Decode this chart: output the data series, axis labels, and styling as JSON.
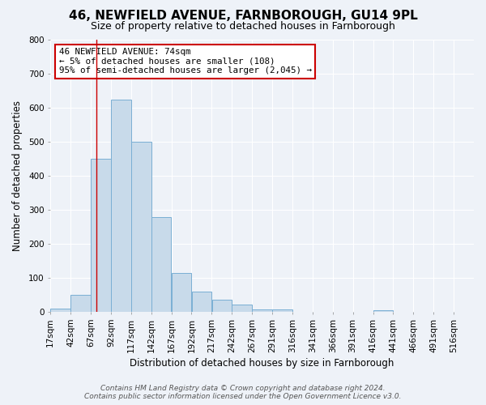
{
  "title": "46, NEWFIELD AVENUE, FARNBOROUGH, GU14 9PL",
  "subtitle": "Size of property relative to detached houses in Farnborough",
  "xlabel": "Distribution of detached houses by size in Farnborough",
  "ylabel": "Number of detached properties",
  "bin_labels": [
    "17sqm",
    "42sqm",
    "67sqm",
    "92sqm",
    "117sqm",
    "142sqm",
    "167sqm",
    "192sqm",
    "217sqm",
    "242sqm",
    "267sqm",
    "291sqm",
    "316sqm",
    "341sqm",
    "366sqm",
    "391sqm",
    "416sqm",
    "441sqm",
    "466sqm",
    "491sqm",
    "516sqm"
  ],
  "bar_values": [
    10,
    50,
    450,
    625,
    500,
    280,
    115,
    60,
    37,
    22,
    9,
    7,
    0,
    0,
    0,
    0,
    5,
    0,
    0,
    0,
    0
  ],
  "bar_color": "#c8daea",
  "bar_edge_color": "#7aafd4",
  "vline_color": "#cc0000",
  "annotation_text": "46 NEWFIELD AVENUE: 74sqm\n← 5% of detached houses are smaller (108)\n95% of semi-detached houses are larger (2,045) →",
  "annotation_box_color": "#ffffff",
  "annotation_box_edge_color": "#cc0000",
  "footer_line1": "Contains HM Land Registry data © Crown copyright and database right 2024.",
  "footer_line2": "Contains public sector information licensed under the Open Government Licence v3.0.",
  "background_color": "#eef2f8",
  "grid_color": "#ffffff",
  "ylim": [
    0,
    800
  ],
  "yticks": [
    0,
    100,
    200,
    300,
    400,
    500,
    600,
    700,
    800
  ],
  "title_fontsize": 11,
  "subtitle_fontsize": 9,
  "axis_label_fontsize": 8.5,
  "tick_fontsize": 7.5,
  "annotation_fontsize": 7.8,
  "footer_fontsize": 6.5
}
